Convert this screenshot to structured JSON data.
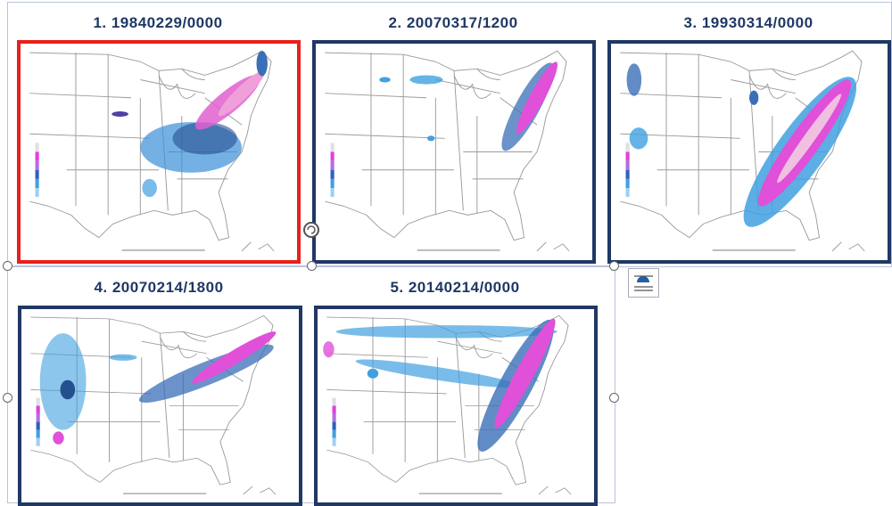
{
  "panels": [
    {
      "title": "1. 19840229/0000"
    },
    {
      "title": "2. 20070317/1200"
    },
    {
      "title": "3. 19930314/0000"
    },
    {
      "title": "4. 20070214/1800"
    },
    {
      "title": "5. 20140214/0000"
    }
  ]
}
